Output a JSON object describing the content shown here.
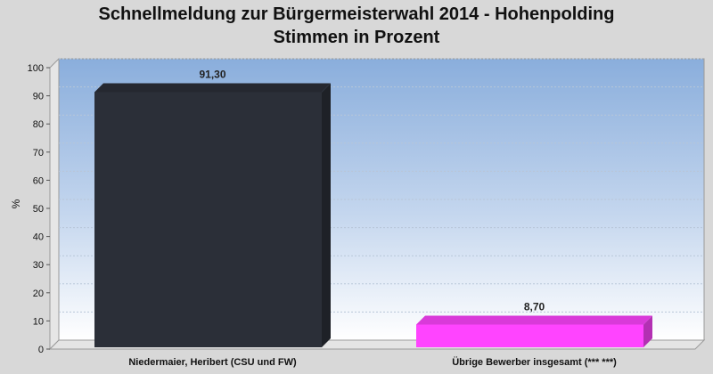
{
  "chart_data": {
    "type": "bar",
    "title": "Schnellmeldung zur Bürgermeisterwahl 2014 - Hohenpolding",
    "subtitle": "Stimmen in Prozent",
    "xlabel": "",
    "ylabel": "%",
    "ylim": [
      0,
      100
    ],
    "yticks": [
      0,
      10,
      20,
      30,
      40,
      50,
      60,
      70,
      80,
      90,
      100
    ],
    "grid": true,
    "categories": [
      "Niedermaier, Heribert (CSU und FW)",
      "Übrige Bewerber insgesamt (***  ***)"
    ],
    "values": [
      91.3,
      8.7
    ],
    "value_labels": [
      "91,30",
      "8,70"
    ],
    "colors": [
      "#2b2f38",
      "#ff44ff"
    ]
  }
}
